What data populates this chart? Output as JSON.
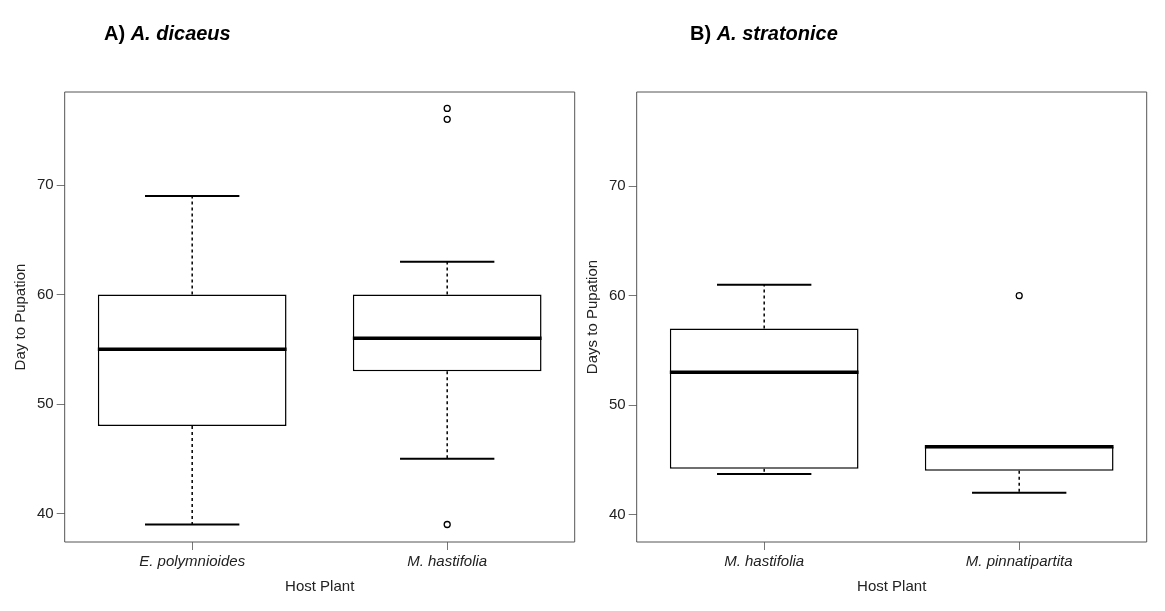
{
  "chart_data": [
    {
      "type": "box",
      "title": "A) A. dicaeus",
      "xlabel": "Host Plant",
      "ylabel": "Day to Pupation",
      "categories": [
        "E. polymnioides",
        "M. hastifolia"
      ],
      "boxes": [
        {
          "low": 39,
          "q1": 48,
          "median": 55,
          "q3": 60,
          "high": 69
        },
        {
          "low": 45,
          "q1": 53,
          "median": 56,
          "q3": 60,
          "high": 63,
          "outliers": [
            39,
            76,
            77
          ]
        }
      ],
      "ylim": [
        37.4,
        78.5
      ],
      "yticks": [
        40,
        50,
        60,
        70
      ]
    },
    {
      "type": "box",
      "title": "B) A. stratonice",
      "xlabel": "Host Plant",
      "ylabel": "Days to Pupation",
      "categories": [
        "M. hastifolia",
        "M. pinnatipartita"
      ],
      "boxes": [
        {
          "low": 43.7,
          "q1": 44.2,
          "median": 53,
          "q3": 57,
          "high": 61
        },
        {
          "low": 42,
          "q1": 44,
          "median": 46.2,
          "q3": 46.2,
          "high": 46.2,
          "outliers": [
            60
          ]
        }
      ],
      "ylim": [
        37.5,
        78.6
      ],
      "yticks": [
        40,
        50,
        60,
        70
      ]
    }
  ]
}
